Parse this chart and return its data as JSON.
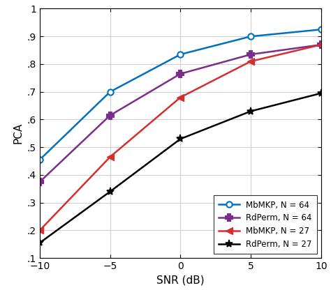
{
  "snr": [
    -10,
    -5,
    0,
    5,
    10
  ],
  "MbMKP_N64": [
    0.455,
    0.7,
    0.835,
    0.9,
    0.925
  ],
  "RdPerm_N64": [
    0.375,
    0.615,
    0.765,
    0.835,
    0.87
  ],
  "MbMKP_N27": [
    0.2,
    0.465,
    0.68,
    0.81,
    0.87
  ],
  "RdPerm_N27": [
    0.155,
    0.34,
    0.53,
    0.63,
    0.695
  ],
  "colors": {
    "MbMKP_N64": "#0072BD",
    "RdPerm_N64": "#7B2D8B",
    "MbMKP_N27": "#D32F2F",
    "RdPerm_N27": "#000000"
  },
  "markers": {
    "MbMKP_N64": "o",
    "RdPerm_N64": "P",
    "MbMKP_N27": "<",
    "RdPerm_N27": "*"
  },
  "labels": {
    "MbMKP_N64": "MbMKP, N = 64",
    "RdPerm_N64": "RdPerm, N = 64",
    "MbMKP_N27": "MbMKP, N = 27",
    "RdPerm_N27": "RdPerm, N = 27"
  },
  "xlabel": "SNR (dB)",
  "ylabel": "PCA",
  "ylim": [
    0.1,
    1.0
  ],
  "xlim": [
    -10,
    10
  ],
  "yticks": [
    0.1,
    0.2,
    0.3,
    0.4,
    0.5,
    0.6,
    0.7,
    0.8,
    0.9,
    1.0
  ],
  "xticks": [
    -10,
    -5,
    0,
    5,
    10
  ],
  "grid_color": "#D0D0D0",
  "background_color": "#FFFFFF",
  "fig_background": "#FFFFFF"
}
